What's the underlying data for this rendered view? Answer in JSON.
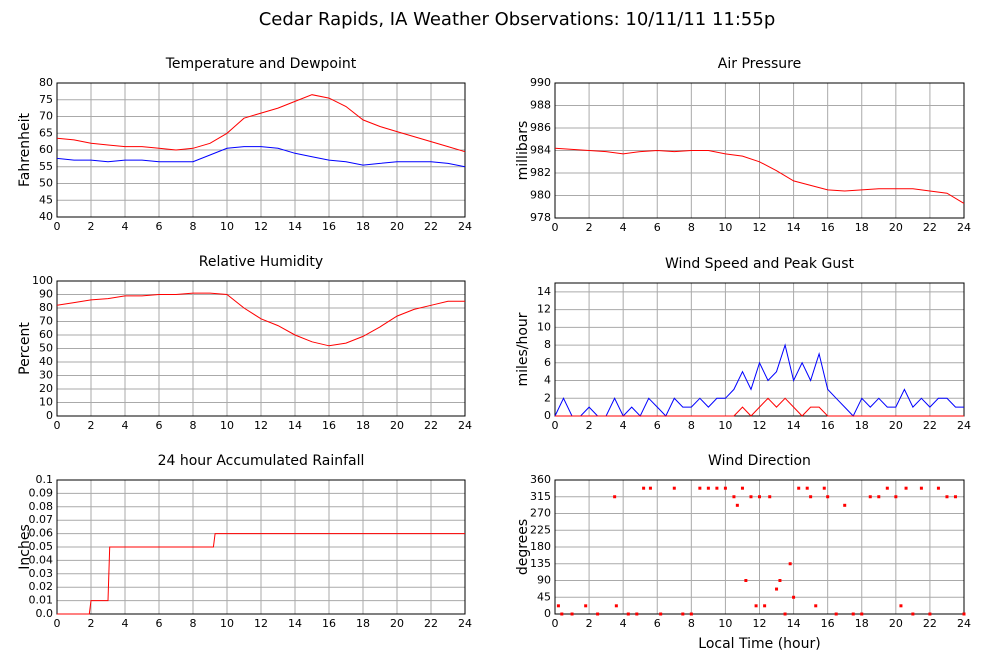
{
  "title": "Cedar Rapids, IA Weather Observations: 10/11/11 11:55p",
  "chart_data": [
    {
      "type": "line",
      "title": "Temperature and Dewpoint",
      "ylabel": "Fahrenheit",
      "grid": true,
      "x": [
        0,
        1,
        2,
        3,
        4,
        5,
        6,
        7,
        8,
        9,
        10,
        11,
        12,
        13,
        14,
        15,
        16,
        17,
        18,
        19,
        20,
        21,
        22,
        23,
        24
      ],
      "series": [
        {
          "color": "#ff0000",
          "values": [
            63.5,
            63,
            62,
            61.5,
            61,
            61,
            60.5,
            60,
            60.5,
            62,
            65,
            69.5,
            71,
            72.5,
            74.5,
            76.5,
            75.5,
            73,
            69,
            67,
            65.5,
            64,
            62.5,
            61,
            59.5
          ]
        },
        {
          "color": "#0000ff",
          "values": [
            57.5,
            57,
            57,
            56.5,
            57,
            57,
            56.5,
            56.5,
            56.5,
            58.5,
            60.5,
            61,
            61,
            60.5,
            59,
            58,
            57,
            56.5,
            55.5,
            56,
            56.5,
            56.5,
            56.5,
            56,
            55
          ]
        }
      ],
      "xlim": [
        0,
        24
      ],
      "xticks": [
        0,
        2,
        4,
        6,
        8,
        10,
        12,
        14,
        16,
        18,
        20,
        22,
        24
      ],
      "ylim": [
        40,
        80
      ],
      "yticks": [
        40,
        45,
        50,
        55,
        60,
        65,
        70,
        75,
        80
      ]
    },
    {
      "type": "line",
      "title": "Air Pressure",
      "ylabel": "millibars",
      "grid": true,
      "x": [
        0,
        1,
        2,
        3,
        4,
        5,
        6,
        7,
        8,
        9,
        10,
        11,
        12,
        13,
        14,
        15,
        16,
        17,
        18,
        19,
        20,
        21,
        22,
        23,
        24
      ],
      "series": [
        {
          "color": "#ff0000",
          "values": [
            984.2,
            984.1,
            984.0,
            983.9,
            983.7,
            983.9,
            984.0,
            983.9,
            984.0,
            984.0,
            983.7,
            983.5,
            983.0,
            982.2,
            981.3,
            980.9,
            980.5,
            980.4,
            980.5,
            980.6,
            980.6,
            980.6,
            980.4,
            980.2,
            979.3
          ]
        }
      ],
      "xlim": [
        0,
        24
      ],
      "xticks": [
        0,
        2,
        4,
        6,
        8,
        10,
        12,
        14,
        16,
        18,
        20,
        22,
        24
      ],
      "ylim": [
        978,
        990
      ],
      "yticks": [
        978,
        980,
        982,
        984,
        986,
        988,
        990
      ]
    },
    {
      "type": "line",
      "title": "Relative Humidity",
      "ylabel": "Percent",
      "grid": true,
      "x": [
        0,
        1,
        2,
        3,
        4,
        5,
        6,
        7,
        8,
        9,
        10,
        11,
        12,
        13,
        14,
        15,
        16,
        17,
        18,
        19,
        20,
        21,
        22,
        23,
        24
      ],
      "series": [
        {
          "color": "#ff0000",
          "values": [
            82,
            84,
            86,
            87,
            89,
            89,
            90,
            90,
            91,
            91,
            90,
            80,
            72,
            67,
            60,
            55,
            52,
            54,
            59,
            66,
            74,
            79,
            82,
            85,
            85
          ]
        }
      ],
      "xlim": [
        0,
        24
      ],
      "xticks": [
        0,
        2,
        4,
        6,
        8,
        10,
        12,
        14,
        16,
        18,
        20,
        22,
        24
      ],
      "ylim": [
        0,
        100
      ],
      "yticks": [
        0,
        10,
        20,
        30,
        40,
        50,
        60,
        70,
        80,
        90,
        100
      ]
    },
    {
      "type": "line",
      "title": "Wind Speed and Peak Gust",
      "ylabel": "miles/hour",
      "grid": true,
      "x": [
        0,
        0.5,
        1,
        1.5,
        2,
        2.5,
        3,
        3.5,
        4,
        4.5,
        5,
        5.5,
        6,
        6.5,
        7,
        7.5,
        8,
        8.5,
        9,
        9.5,
        10,
        10.5,
        11,
        11.5,
        12,
        12.5,
        13,
        13.5,
        14,
        14.5,
        15,
        15.5,
        16,
        16.5,
        17,
        17.5,
        18,
        18.5,
        19,
        19.5,
        20,
        20.5,
        21,
        21.5,
        22,
        22.5,
        23,
        23.5,
        24
      ],
      "series": [
        {
          "color": "#0000ff",
          "values": [
            0,
            2,
            0,
            0,
            1,
            0,
            0,
            2,
            0,
            1,
            0,
            2,
            1,
            0,
            2,
            1,
            1,
            2,
            1,
            2,
            2,
            3,
            5,
            3,
            6,
            4,
            5,
            8,
            4,
            6,
            4,
            7,
            3,
            2,
            1,
            0,
            2,
            1,
            2,
            1,
            1,
            3,
            1,
            2,
            1,
            2,
            2,
            1,
            1
          ]
        },
        {
          "color": "#ff0000",
          "values": [
            0,
            0,
            0,
            0,
            0,
            0,
            0,
            0,
            0,
            0,
            0,
            0,
            0,
            0,
            0,
            0,
            0,
            0,
            0,
            0,
            0,
            0,
            1,
            0,
            1,
            2,
            1,
            2,
            1,
            0,
            1,
            1,
            0,
            0,
            0,
            0,
            0,
            0,
            0,
            0,
            0,
            0,
            0,
            0,
            0,
            0,
            0,
            0,
            0
          ]
        }
      ],
      "xlim": [
        0,
        24
      ],
      "xticks": [
        0,
        2,
        4,
        6,
        8,
        10,
        12,
        14,
        16,
        18,
        20,
        22,
        24
      ],
      "ylim": [
        0,
        15
      ],
      "yticks": [
        0,
        2,
        4,
        6,
        8,
        10,
        12,
        14
      ]
    },
    {
      "type": "line",
      "title": "24 hour Accumulated Rainfall",
      "ylabel": "Inches",
      "grid": true,
      "x": [
        0,
        1.9,
        2.0,
        3.0,
        3.1,
        9.2,
        9.3,
        24
      ],
      "series": [
        {
          "color": "#ff0000",
          "values": [
            0,
            0,
            0.01,
            0.01,
            0.05,
            0.05,
            0.06,
            0.06
          ]
        }
      ],
      "xlim": [
        0,
        24
      ],
      "xticks": [
        0,
        2,
        4,
        6,
        8,
        10,
        12,
        14,
        16,
        18,
        20,
        22,
        24
      ],
      "ylim": [
        0,
        0.1
      ],
      "yticks": [
        {
          "value": 0,
          "label": "0.0"
        },
        0.01,
        0.02,
        0.03,
        0.04,
        0.05,
        0.06,
        0.07,
        0.08,
        0.09,
        0.1
      ]
    },
    {
      "type": "scatter",
      "title": "Wind Direction",
      "ylabel": "degrees",
      "xlabel": "Local Time (hour)",
      "grid": true,
      "x": [
        0.2,
        0.4,
        1,
        1.8,
        2.5,
        3.5,
        3.6,
        4.3,
        4.8,
        5.2,
        5.6,
        6.2,
        7,
        7.5,
        8,
        8.5,
        9,
        9.5,
        10,
        10.5,
        10.7,
        11,
        11.2,
        11.5,
        11.8,
        12,
        12.3,
        12.6,
        13,
        13.2,
        13.5,
        13.8,
        14,
        14.3,
        14.8,
        15,
        15.3,
        15.8,
        16,
        16.5,
        17,
        17.5,
        18,
        18.5,
        19,
        19.5,
        20,
        20.3,
        20.6,
        21,
        21.5,
        22,
        22.5,
        23,
        23.5,
        24
      ],
      "values": [
        22,
        0,
        0,
        22,
        0,
        315,
        22,
        0,
        0,
        338,
        338,
        0,
        338,
        0,
        0,
        338,
        338,
        338,
        338,
        315,
        292,
        338,
        90,
        315,
        22,
        315,
        22,
        315,
        67,
        90,
        0,
        135,
        45,
        338,
        338,
        315,
        22,
        338,
        315,
        0,
        292,
        0,
        0,
        315,
        315,
        338,
        315,
        22,
        338,
        0,
        338,
        0,
        338,
        315,
        315,
        0
      ],
      "xlim": [
        0,
        24
      ],
      "xticks": [
        0,
        2,
        4,
        6,
        8,
        10,
        12,
        14,
        16,
        18,
        20,
        22,
        24
      ],
      "ylim": [
        0,
        360
      ],
      "yticks": [
        0,
        45,
        90,
        135,
        180,
        225,
        270,
        315,
        360
      ],
      "color": "#ff0000"
    }
  ]
}
